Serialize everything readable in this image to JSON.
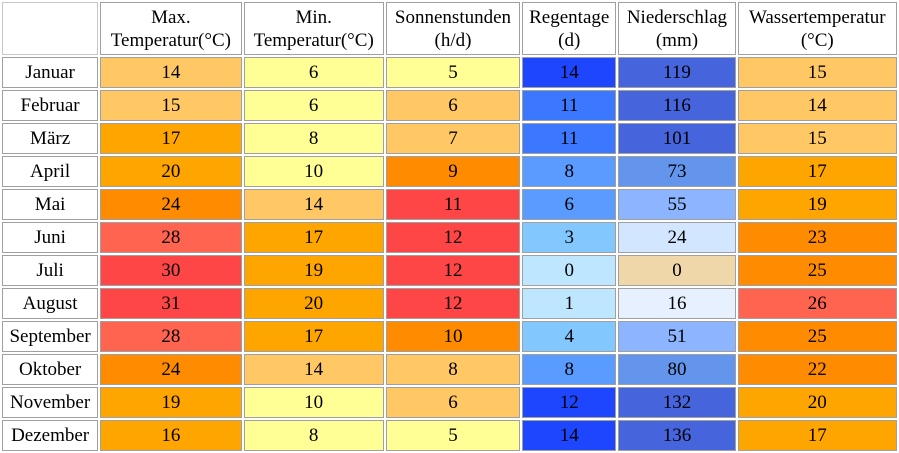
{
  "headers": [
    {
      "line1": "",
      "line2": ""
    },
    {
      "line1": "Max.",
      "line2": "Temperatur(°C)"
    },
    {
      "line1": "Min.",
      "line2": "Temperatur(°C)"
    },
    {
      "line1": "Sonnenstunden",
      "line2": "(h/d)"
    },
    {
      "line1": "Regentage",
      "line2": "(d)"
    },
    {
      "line1": "Niederschlag",
      "line2": "(mm)"
    },
    {
      "line1": "Wassertemperatur",
      "line2": "(°C)"
    }
  ],
  "rows": [
    {
      "month": "Januar",
      "cells": [
        {
          "v": "14",
          "bg": "#ffc864"
        },
        {
          "v": "6",
          "bg": "#ffff96"
        },
        {
          "v": "5",
          "bg": "#ffff96"
        },
        {
          "v": "14",
          "bg": "#1e46ff"
        },
        {
          "v": "119",
          "bg": "#4664dc"
        },
        {
          "v": "15",
          "bg": "#ffc864"
        }
      ]
    },
    {
      "month": "Februar",
      "cells": [
        {
          "v": "15",
          "bg": "#ffc864"
        },
        {
          "v": "6",
          "bg": "#ffff96"
        },
        {
          "v": "6",
          "bg": "#ffc864"
        },
        {
          "v": "11",
          "bg": "#3c78ff"
        },
        {
          "v": "116",
          "bg": "#4664dc"
        },
        {
          "v": "14",
          "bg": "#ffc864"
        }
      ]
    },
    {
      "month": "März",
      "cells": [
        {
          "v": "17",
          "bg": "#ffa500"
        },
        {
          "v": "8",
          "bg": "#ffff96"
        },
        {
          "v": "7",
          "bg": "#ffc864"
        },
        {
          "v": "11",
          "bg": "#3c78ff"
        },
        {
          "v": "101",
          "bg": "#4664dc"
        },
        {
          "v": "15",
          "bg": "#ffc864"
        }
      ]
    },
    {
      "month": "April",
      "cells": [
        {
          "v": "20",
          "bg": "#ffa500"
        },
        {
          "v": "10",
          "bg": "#ffff96"
        },
        {
          "v": "9",
          "bg": "#ff8c00"
        },
        {
          "v": "8",
          "bg": "#5a9bff"
        },
        {
          "v": "73",
          "bg": "#6495ed"
        },
        {
          "v": "17",
          "bg": "#ffa500"
        }
      ]
    },
    {
      "month": "Mai",
      "cells": [
        {
          "v": "24",
          "bg": "#ff8c00"
        },
        {
          "v": "14",
          "bg": "#ffc864"
        },
        {
          "v": "11",
          "bg": "#ff4646"
        },
        {
          "v": "6",
          "bg": "#5a9bff"
        },
        {
          "v": "55",
          "bg": "#8cb4ff"
        },
        {
          "v": "19",
          "bg": "#ffa500"
        }
      ]
    },
    {
      "month": "Juni",
      "cells": [
        {
          "v": "28",
          "bg": "#ff6450"
        },
        {
          "v": "17",
          "bg": "#ffa500"
        },
        {
          "v": "12",
          "bg": "#ff4646"
        },
        {
          "v": "3",
          "bg": "#82c8ff"
        },
        {
          "v": "24",
          "bg": "#d2e6ff"
        },
        {
          "v": "23",
          "bg": "#ff8c00"
        }
      ]
    },
    {
      "month": "Juli",
      "cells": [
        {
          "v": "30",
          "bg": "#ff4646"
        },
        {
          "v": "19",
          "bg": "#ffa500"
        },
        {
          "v": "12",
          "bg": "#ff4646"
        },
        {
          "v": "0",
          "bg": "#bee6ff"
        },
        {
          "v": "0",
          "bg": "#f0d7aa"
        },
        {
          "v": "25",
          "bg": "#ff8c00"
        }
      ]
    },
    {
      "month": "August",
      "cells": [
        {
          "v": "31",
          "bg": "#ff4646"
        },
        {
          "v": "20",
          "bg": "#ffa500"
        },
        {
          "v": "12",
          "bg": "#ff4646"
        },
        {
          "v": "1",
          "bg": "#bee6ff"
        },
        {
          "v": "16",
          "bg": "#e6f0ff"
        },
        {
          "v": "26",
          "bg": "#ff6450"
        }
      ]
    },
    {
      "month": "September",
      "cells": [
        {
          "v": "28",
          "bg": "#ff6450"
        },
        {
          "v": "17",
          "bg": "#ffa500"
        },
        {
          "v": "10",
          "bg": "#ff8c00"
        },
        {
          "v": "4",
          "bg": "#82c8ff"
        },
        {
          "v": "51",
          "bg": "#8cb4ff"
        },
        {
          "v": "25",
          "bg": "#ff8c00"
        }
      ]
    },
    {
      "month": "Oktober",
      "cells": [
        {
          "v": "24",
          "bg": "#ff8c00"
        },
        {
          "v": "14",
          "bg": "#ffc864"
        },
        {
          "v": "8",
          "bg": "#ffc864"
        },
        {
          "v": "8",
          "bg": "#5a9bff"
        },
        {
          "v": "80",
          "bg": "#6495ed"
        },
        {
          "v": "22",
          "bg": "#ff8c00"
        }
      ]
    },
    {
      "month": "November",
      "cells": [
        {
          "v": "19",
          "bg": "#ffa500"
        },
        {
          "v": "10",
          "bg": "#ffff96"
        },
        {
          "v": "6",
          "bg": "#ffc864"
        },
        {
          "v": "12",
          "bg": "#1e46ff"
        },
        {
          "v": "132",
          "bg": "#4664dc"
        },
        {
          "v": "20",
          "bg": "#ffa500"
        }
      ]
    },
    {
      "month": "Dezember",
      "cells": [
        {
          "v": "16",
          "bg": "#ffa500"
        },
        {
          "v": "8",
          "bg": "#ffff96"
        },
        {
          "v": "5",
          "bg": "#ffff96"
        },
        {
          "v": "14",
          "bg": "#1e46ff"
        },
        {
          "v": "136",
          "bg": "#4664dc"
        },
        {
          "v": "17",
          "bg": "#ffa500"
        }
      ]
    }
  ]
}
